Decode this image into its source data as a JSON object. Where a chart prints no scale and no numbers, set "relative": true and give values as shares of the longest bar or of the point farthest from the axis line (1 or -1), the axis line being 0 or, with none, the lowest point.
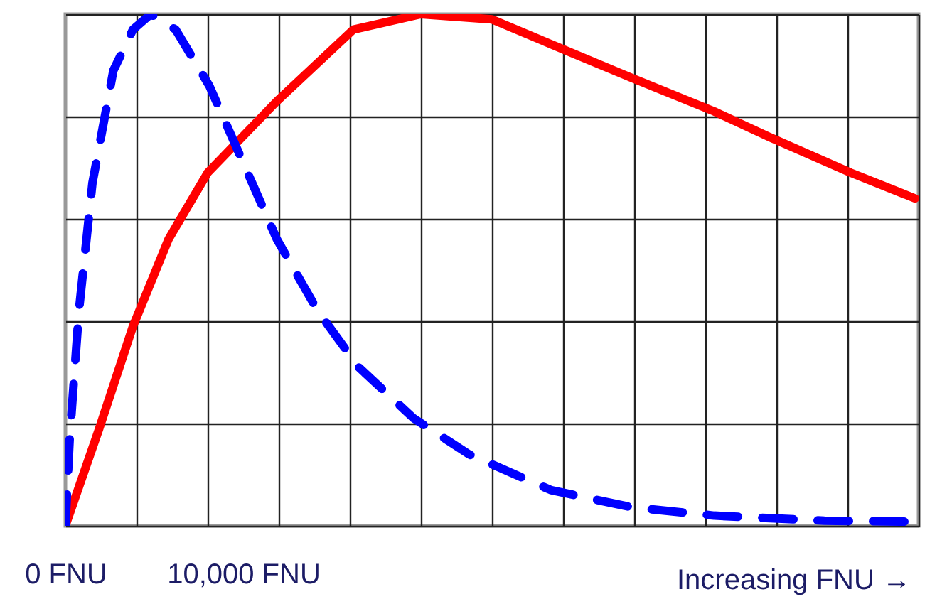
{
  "chart_data": {
    "type": "line",
    "xlabel": "Increasing FNU →",
    "relative": true,
    "grid": true,
    "xlim": [
      0,
      48000
    ],
    "xticks": [
      {
        "value": 0,
        "label": "0 FNU"
      },
      {
        "value": 4000,
        "label": null
      },
      {
        "value": 8000,
        "label": null
      },
      {
        "value": 10000,
        "label": "10,000 FNU"
      },
      {
        "value": 12000,
        "label": null
      },
      {
        "value": 16000,
        "label": null
      },
      {
        "value": 20000,
        "label": null
      },
      {
        "value": 24000,
        "label": null
      },
      {
        "value": 28000,
        "label": null
      },
      {
        "value": 32000,
        "label": null
      },
      {
        "value": 36000,
        "label": null
      },
      {
        "value": 40000,
        "label": null
      },
      {
        "value": 44000,
        "label": null
      },
      {
        "value": 48000,
        "label": null
      }
    ],
    "series": [
      {
        "color": "#ff0000",
        "line_style": "solid",
        "x": [
          0,
          1900,
          3800,
          5800,
          8000,
          11900,
          16200,
          20000,
          24000,
          28100,
          31900,
          36500,
          39600,
          44200,
          47800
        ],
        "values": [
          0,
          0.19,
          0.39,
          0.56,
          0.69,
          0.83,
          0.97,
          1,
          0.99,
          0.93,
          0.875,
          0.81,
          0.76,
          0.69,
          0.64
        ]
      },
      {
        "color": "#0000ff",
        "line_style": "dashed",
        "x": [
          0,
          240,
          760,
          1520,
          2700,
          3800,
          4800,
          6200,
          8100,
          10000,
          11900,
          14200,
          16500,
          19600,
          22700,
          27300,
          31900,
          36500,
          42700,
          47800
        ],
        "values": [
          0,
          0.17,
          0.42,
          0.67,
          0.89,
          0.97,
          1,
          0.97,
          0.86,
          0.71,
          0.56,
          0.42,
          0.31,
          0.21,
          0.14,
          0.07,
          0.036,
          0.02,
          0.01,
          0.008
        ]
      }
    ]
  }
}
